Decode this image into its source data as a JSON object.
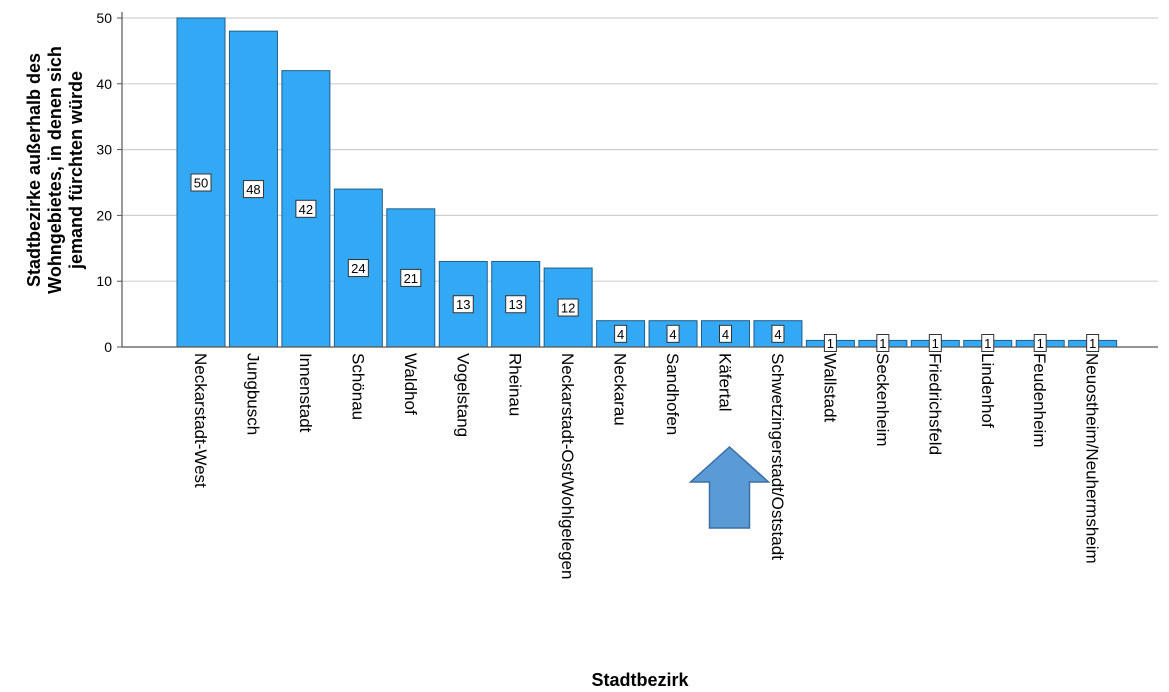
{
  "chart_data": {
    "type": "bar",
    "categories": [
      "Neckarstadt-West",
      "Jungbusch",
      "Innenstadt",
      "Schönau",
      "Waldhof",
      "Vogelstang",
      "Rheinau",
      "Neckarstadt-Ost/Wohlgelegen",
      "Neckarau",
      "Sandhofen",
      "Käfertal",
      "Schwetzingerstadt/Oststadt",
      "Wallstadt",
      "Seckenheim",
      "Friedrichsfeld",
      "Lindenhof",
      "Feudenheim",
      "Neuostheim/Neuhermsheim"
    ],
    "values": [
      50,
      48,
      42,
      24,
      21,
      13,
      13,
      12,
      4,
      4,
      4,
      4,
      1,
      1,
      1,
      1,
      1,
      1
    ],
    "xlabel": "Stadtbezirk",
    "ylabel_lines": [
      "Stadtbezirke außerhalb des",
      "Wohngebietes, in denen sich",
      "jemand fürchten würde"
    ],
    "ylim": [
      0,
      50
    ],
    "yticks": [
      0,
      10,
      20,
      30,
      40,
      50
    ],
    "grid": true,
    "data_labels": true,
    "bar_color": "#33a8f5",
    "highlighted_category": "Käfertal",
    "annotation": "arrow pointing up at Käfertal",
    "arrow_color": "#5b9bd5"
  }
}
